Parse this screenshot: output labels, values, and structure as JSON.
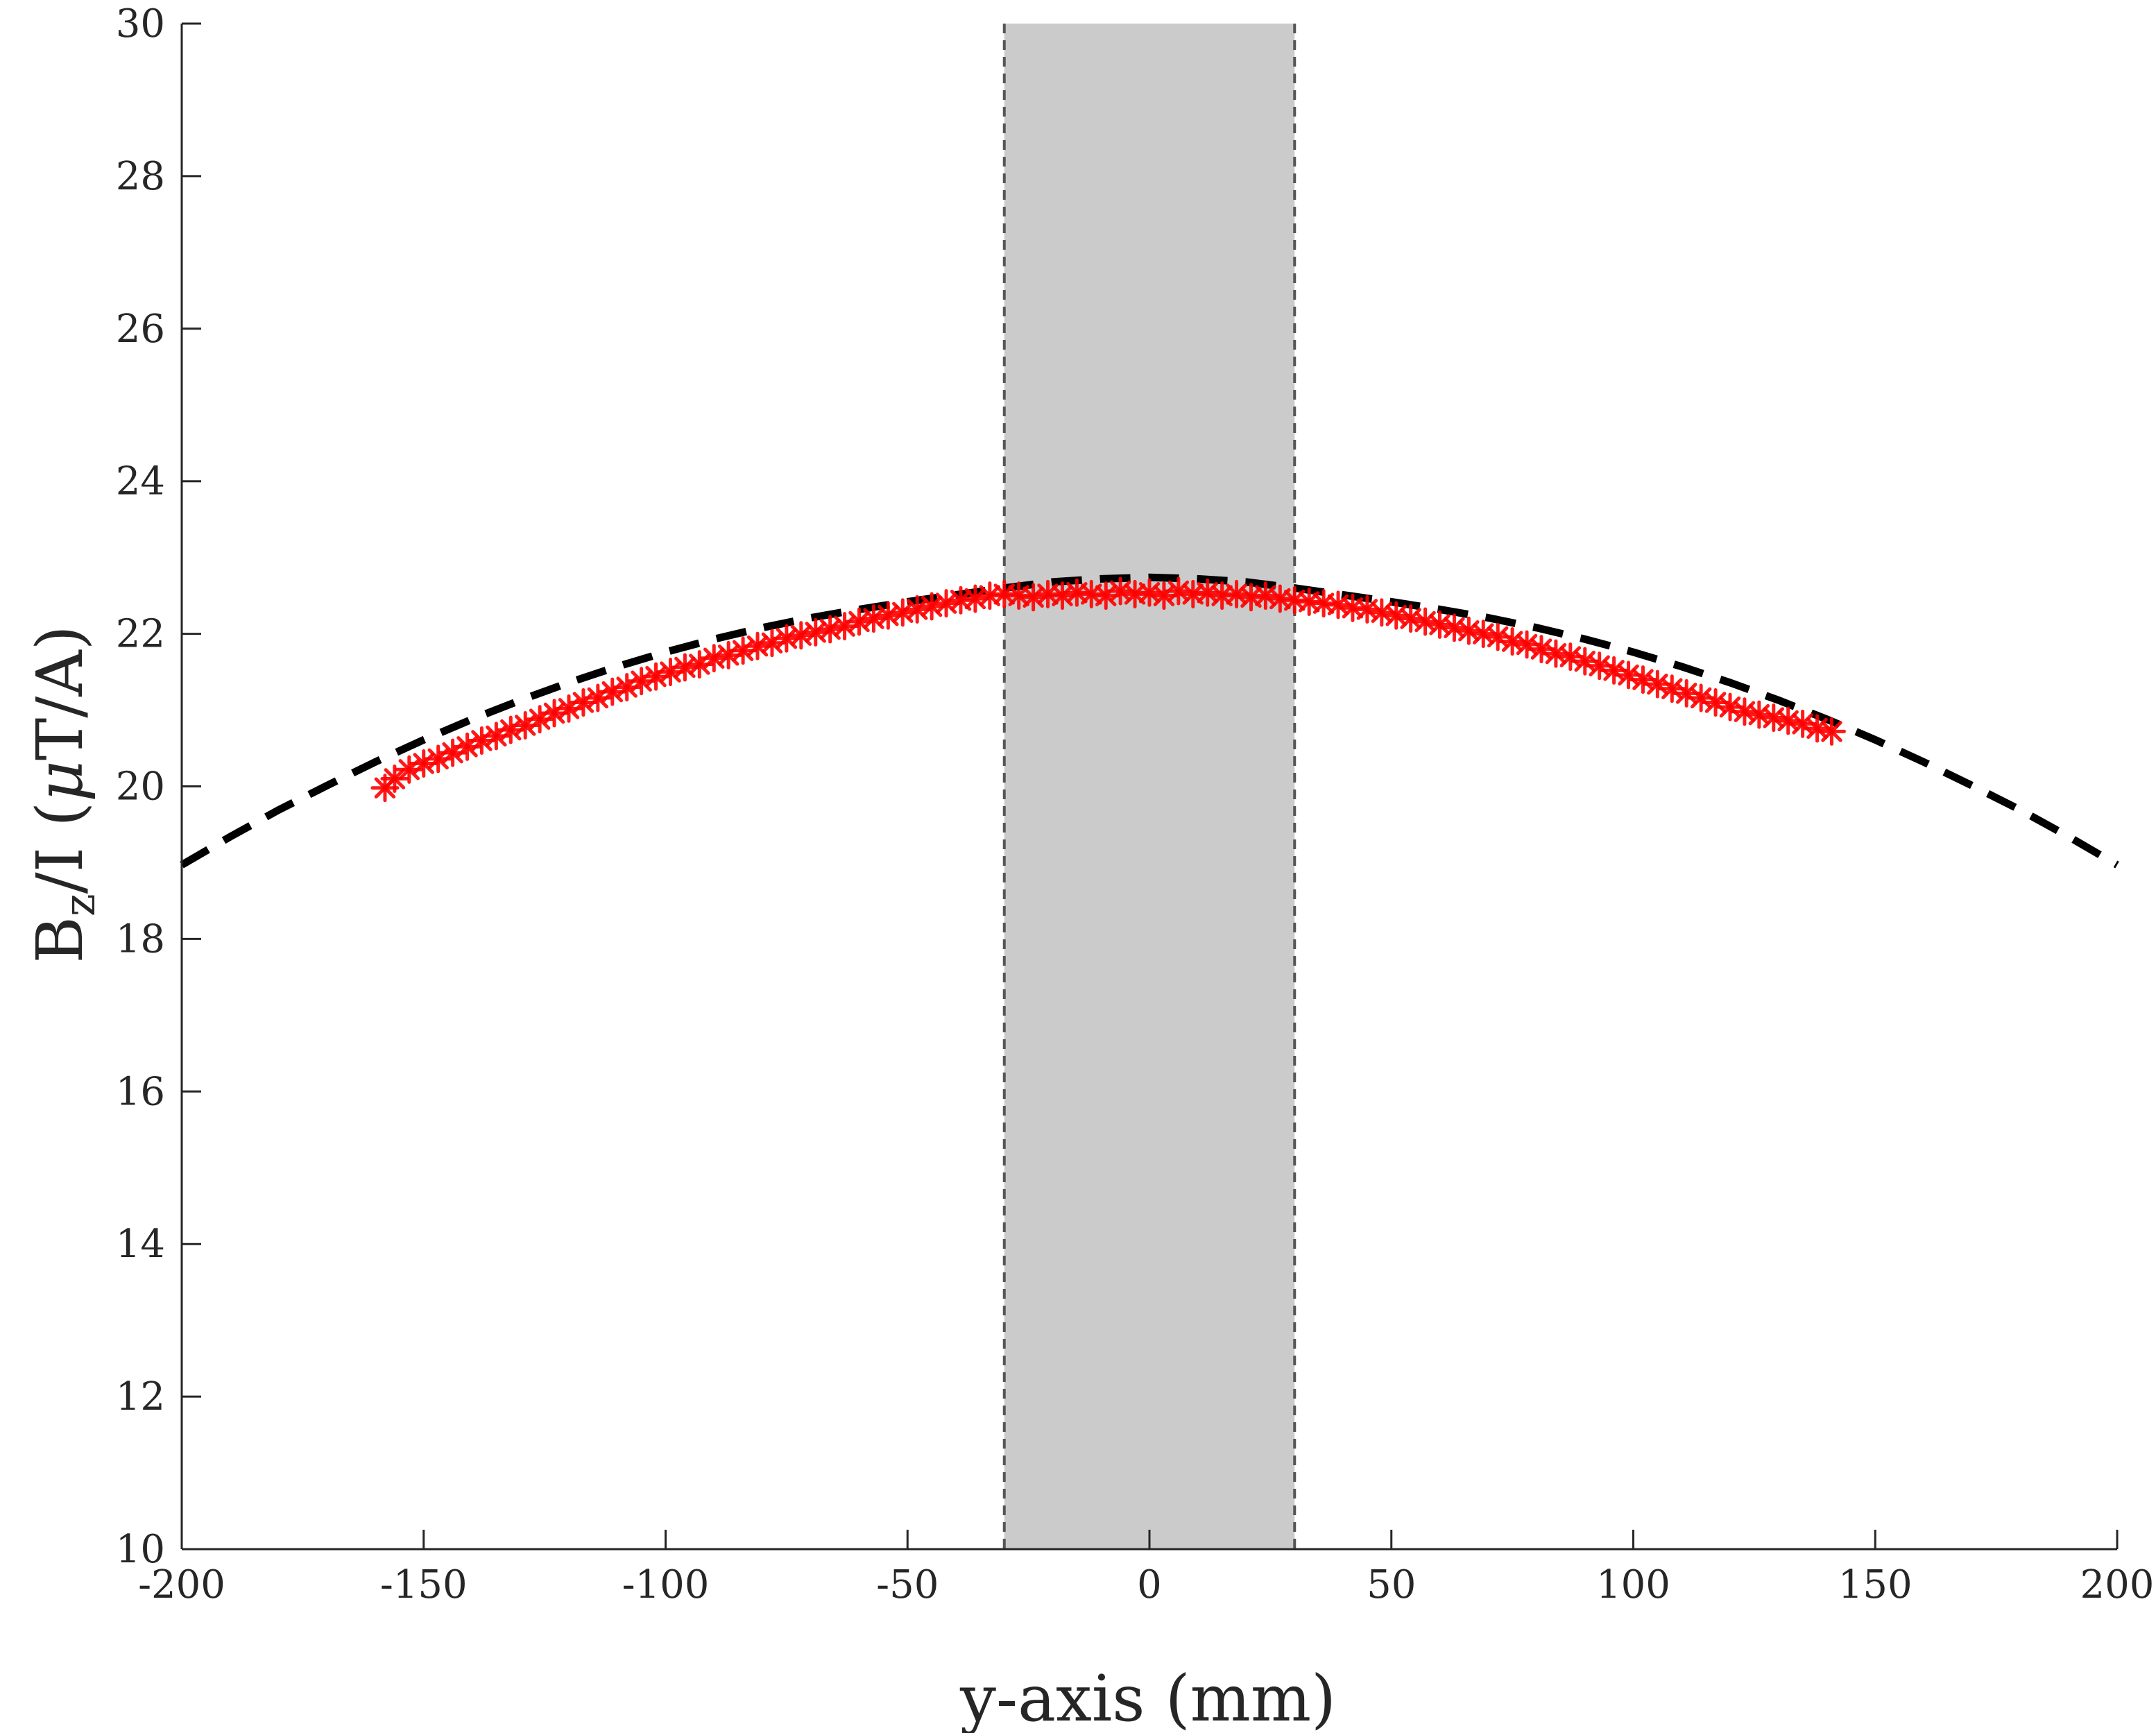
{
  "chart_data": {
    "type": "scatter",
    "title": "",
    "xlabel": "y-axis (mm)",
    "ylabel": {
      "main": "B",
      "subscript": "z",
      "rest": "/I (",
      "mu": "μ",
      "unit_tail": "T/A)"
    },
    "xlim": [
      -200,
      200
    ],
    "ylim": [
      10,
      30
    ],
    "xticks": [
      -200,
      -150,
      -100,
      -50,
      0,
      50,
      100,
      150,
      200
    ],
    "yticks": [
      10,
      12,
      14,
      16,
      18,
      20,
      22,
      24,
      26,
      28,
      30
    ],
    "grid": false,
    "legend": "none",
    "shaded_region": {
      "x_range": [
        -30,
        30
      ],
      "color": "#c8c8c8",
      "edge_style": "dashed"
    },
    "series": [
      {
        "kind": "measured",
        "marker": "asterisk",
        "color": "#ff0000",
        "x": [
          -158,
          -156,
          -153,
          -150,
          -147,
          -144,
          -141,
          -138,
          -135,
          -132,
          -129,
          -126,
          -123,
          -120,
          -117,
          -114,
          -111,
          -108,
          -105,
          -102,
          -99,
          -96,
          -93,
          -90,
          -87,
          -84,
          -81,
          -78,
          -75,
          -72,
          -69,
          -66,
          -63,
          -60,
          -57,
          -54,
          -51,
          -48,
          -45,
          -42,
          -39,
          -36,
          -33,
          -30,
          -27,
          -24,
          -21,
          -18,
          -15,
          -12,
          -9,
          -6,
          -3,
          0,
          3,
          6,
          9,
          12,
          15,
          18,
          21,
          24,
          27,
          30,
          33,
          36,
          39,
          42,
          45,
          48,
          51,
          54,
          57,
          60,
          63,
          66,
          69,
          72,
          75,
          78,
          81,
          84,
          87,
          90,
          93,
          96,
          99,
          102,
          105,
          108,
          111,
          114,
          117,
          120,
          123,
          126,
          129,
          132,
          135,
          138,
          141
        ],
        "y": [
          19.98,
          20.1,
          20.22,
          20.3,
          20.36,
          20.44,
          20.52,
          20.6,
          20.66,
          20.74,
          20.8,
          20.88,
          20.96,
          21.02,
          21.1,
          21.16,
          21.24,
          21.3,
          21.38,
          21.44,
          21.5,
          21.56,
          21.6,
          21.68,
          21.72,
          21.78,
          21.84,
          21.88,
          21.94,
          21.98,
          22.02,
          22.06,
          22.1,
          22.16,
          22.2,
          22.24,
          22.28,
          22.32,
          22.36,
          22.4,
          22.44,
          22.46,
          22.5,
          22.52,
          22.5,
          22.48,
          22.52,
          22.5,
          22.54,
          22.52,
          22.5,
          22.56,
          22.52,
          22.54,
          22.5,
          22.56,
          22.52,
          22.54,
          22.5,
          22.52,
          22.48,
          22.5,
          22.46,
          22.44,
          22.42,
          22.4,
          22.38,
          22.34,
          22.32,
          22.28,
          22.24,
          22.2,
          22.16,
          22.12,
          22.08,
          22.04,
          22.0,
          21.96,
          21.9,
          21.86,
          21.8,
          21.74,
          21.7,
          21.64,
          21.58,
          21.52,
          21.46,
          21.4,
          21.34,
          21.28,
          21.22,
          21.16,
          21.1,
          21.04,
          20.98,
          20.94,
          20.9,
          20.86,
          20.82,
          20.76,
          20.72
        ]
      },
      {
        "kind": "model",
        "line": "dashed",
        "color": "#000000",
        "x": [
          -200,
          -190,
          -180,
          -170,
          -160,
          -150,
          -140,
          -130,
          -120,
          -110,
          -100,
          -90,
          -80,
          -70,
          -60,
          -50,
          -40,
          -30,
          -20,
          -10,
          0,
          10,
          20,
          30,
          40,
          50,
          60,
          70,
          80,
          90,
          100,
          110,
          120,
          130,
          140,
          150,
          160,
          170,
          180,
          190,
          200
        ],
        "y": [
          18.97,
          19.34,
          19.69,
          20.01,
          20.32,
          20.61,
          20.88,
          21.13,
          21.36,
          21.57,
          21.76,
          21.93,
          22.08,
          22.21,
          22.32,
          22.42,
          22.51,
          22.6,
          22.68,
          22.72,
          22.74,
          22.72,
          22.68,
          22.6,
          22.51,
          22.42,
          22.32,
          22.21,
          22.08,
          21.93,
          21.76,
          21.57,
          21.36,
          21.13,
          20.88,
          20.61,
          20.32,
          20.01,
          19.69,
          19.34,
          18.97
        ]
      }
    ]
  }
}
